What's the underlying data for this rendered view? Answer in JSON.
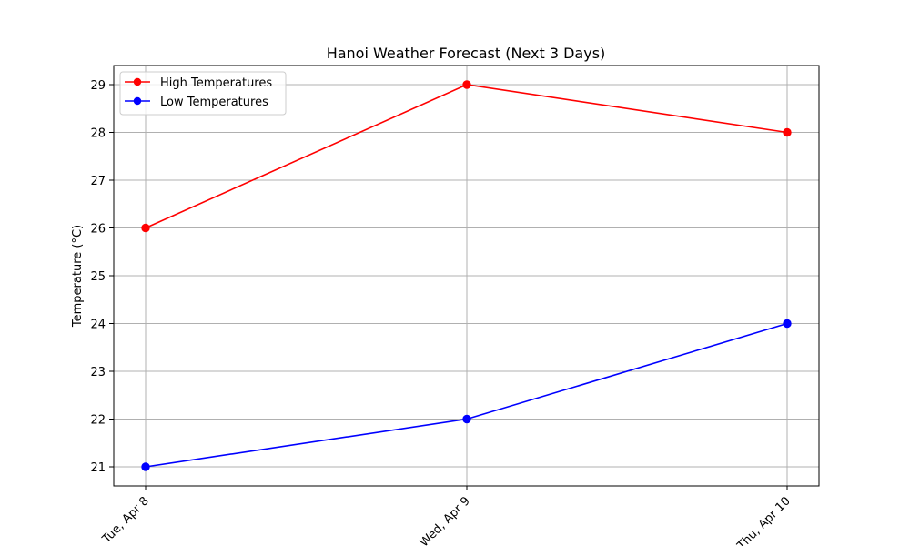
{
  "chart_data": {
    "type": "line",
    "title": "Hanoi Weather Forecast (Next 3 Days)",
    "xlabel": "",
    "ylabel": "Temperature (°C)",
    "categories": [
      "Tue, Apr 8",
      "Wed, Apr 9",
      "Thu, Apr 10"
    ],
    "ylim": [
      20.6,
      29.4
    ],
    "yticks": [
      21,
      22,
      23,
      24,
      25,
      26,
      27,
      28,
      29
    ],
    "grid": true,
    "legend_position": "top-left",
    "series": [
      {
        "name": "High Temperatures",
        "values": [
          26,
          29,
          28
        ],
        "color": "#ff0000"
      },
      {
        "name": "Low Temperatures",
        "values": [
          21,
          22,
          24
        ],
        "color": "#0000ff"
      }
    ]
  }
}
